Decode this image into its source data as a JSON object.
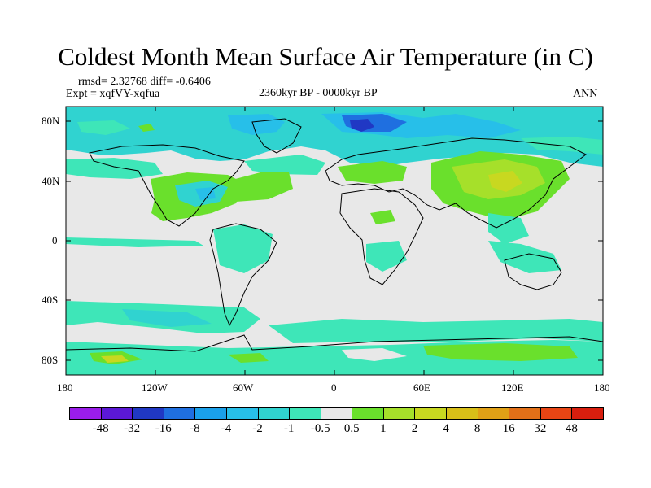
{
  "title": "Coldest Month Mean Surface Air Temperature (in C)",
  "stats_line": "rmsd= 2.32768 diff= -0.6406",
  "expt_line": "Expt = xqfVY-xqfua",
  "period": "2360kyr BP - 0000kyr BP",
  "season": "ANN",
  "lat_ticks": [
    "80N",
    "40N",
    "0",
    "40S",
    "80S"
  ],
  "lon_ticks": [
    "180",
    "120W",
    "60W",
    "0",
    "60E",
    "120E",
    "180"
  ],
  "colorbar": {
    "colors": [
      "#9a1dea",
      "#5b18d6",
      "#2038c4",
      "#1f6fe0",
      "#1aa0ea",
      "#27bfe9",
      "#30d3d0",
      "#3ee6b8",
      "#e8e8e8",
      "#6ae02c",
      "#a6e02a",
      "#c8d820",
      "#d8bf18",
      "#e0a016",
      "#e27018",
      "#e84514",
      "#d81e0e"
    ],
    "labels": [
      "-48",
      "-32",
      "-16",
      "-8",
      "-4",
      "-2",
      "-1",
      "-0.5",
      "0.5",
      "1",
      "2",
      "4",
      "8",
      "16",
      "32",
      "48"
    ]
  },
  "map_colors": {
    "neutral": "#e8e8e8",
    "light_cyan": "#3ee6b8",
    "cyan": "#30d3d0",
    "sky": "#27bfe9",
    "blue": "#1aa0ea",
    "deep_blue": "#1f6fe0",
    "indigo": "#2038c4",
    "lime": "#6ae02c",
    "yellow_green": "#a6e02a",
    "olive": "#c8d820",
    "coast": "#000000"
  }
}
